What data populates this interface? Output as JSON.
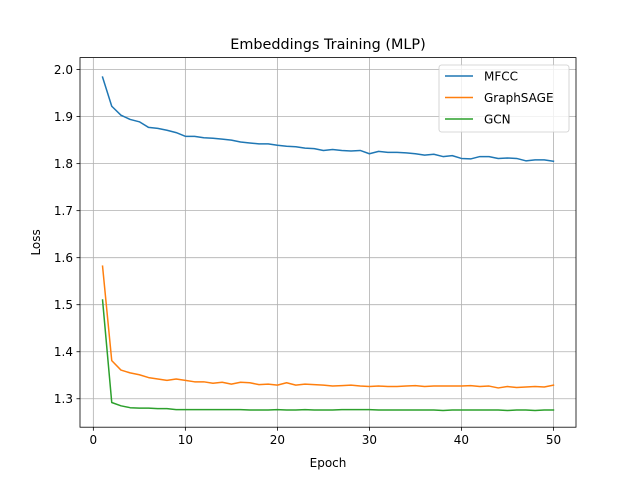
{
  "chart_data": {
    "type": "line",
    "title": "Embeddings Training (MLP)",
    "xlabel": "Epoch",
    "ylabel": "Loss",
    "xlim": [
      -1.45,
      52.45
    ],
    "ylim": [
      1.2395,
      2.0255
    ],
    "xticks": [
      0,
      10,
      20,
      30,
      40,
      50
    ],
    "xtick_labels": [
      "0",
      "10",
      "20",
      "30",
      "40",
      "50"
    ],
    "yticks": [
      1.3,
      1.4,
      1.5,
      1.6,
      1.7,
      1.8,
      1.9,
      2.0
    ],
    "ytick_labels": [
      "1.3",
      "1.4",
      "1.5",
      "1.6",
      "1.7",
      "1.8",
      "1.9",
      "2.0"
    ],
    "grid": true,
    "legend_position": "top-right",
    "x": [
      1,
      2,
      3,
      4,
      5,
      6,
      7,
      8,
      9,
      10,
      11,
      12,
      13,
      14,
      15,
      16,
      17,
      18,
      19,
      20,
      21,
      22,
      23,
      24,
      25,
      26,
      27,
      28,
      29,
      30,
      31,
      32,
      33,
      34,
      35,
      36,
      37,
      38,
      39,
      40,
      41,
      42,
      43,
      44,
      45,
      46,
      47,
      48,
      49,
      50
    ],
    "series": [
      {
        "name": "MFCC",
        "color": "#1f77b4",
        "values": [
          1.984,
          1.922,
          1.903,
          1.894,
          1.889,
          1.877,
          1.875,
          1.871,
          1.866,
          1.858,
          1.858,
          1.855,
          1.854,
          1.852,
          1.85,
          1.846,
          1.844,
          1.842,
          1.842,
          1.839,
          1.837,
          1.836,
          1.833,
          1.832,
          1.828,
          1.83,
          1.828,
          1.827,
          1.828,
          1.821,
          1.826,
          1.824,
          1.824,
          1.823,
          1.821,
          1.818,
          1.82,
          1.815,
          1.817,
          1.811,
          1.81,
          1.815,
          1.815,
          1.811,
          1.812,
          1.811,
          1.806,
          1.808,
          1.808,
          1.805
        ]
      },
      {
        "name": "GraphSAGE",
        "color": "#ff7f0e",
        "values": [
          1.582,
          1.381,
          1.361,
          1.355,
          1.351,
          1.345,
          1.342,
          1.339,
          1.342,
          1.339,
          1.336,
          1.336,
          1.333,
          1.335,
          1.331,
          1.335,
          1.334,
          1.33,
          1.331,
          1.329,
          1.334,
          1.329,
          1.331,
          1.33,
          1.329,
          1.327,
          1.328,
          1.329,
          1.327,
          1.326,
          1.327,
          1.326,
          1.326,
          1.327,
          1.328,
          1.326,
          1.327,
          1.327,
          1.327,
          1.327,
          1.328,
          1.326,
          1.327,
          1.323,
          1.326,
          1.324,
          1.325,
          1.326,
          1.325,
          1.329
        ]
      },
      {
        "name": "GCN",
        "color": "#2ca02c",
        "values": [
          1.51,
          1.292,
          1.285,
          1.281,
          1.28,
          1.28,
          1.279,
          1.279,
          1.277,
          1.277,
          1.277,
          1.277,
          1.277,
          1.277,
          1.277,
          1.277,
          1.276,
          1.276,
          1.276,
          1.277,
          1.276,
          1.276,
          1.277,
          1.276,
          1.276,
          1.276,
          1.277,
          1.277,
          1.277,
          1.277,
          1.276,
          1.276,
          1.276,
          1.276,
          1.276,
          1.276,
          1.276,
          1.275,
          1.276,
          1.276,
          1.276,
          1.276,
          1.276,
          1.276,
          1.275,
          1.276,
          1.276,
          1.275,
          1.276,
          1.276
        ]
      }
    ]
  }
}
